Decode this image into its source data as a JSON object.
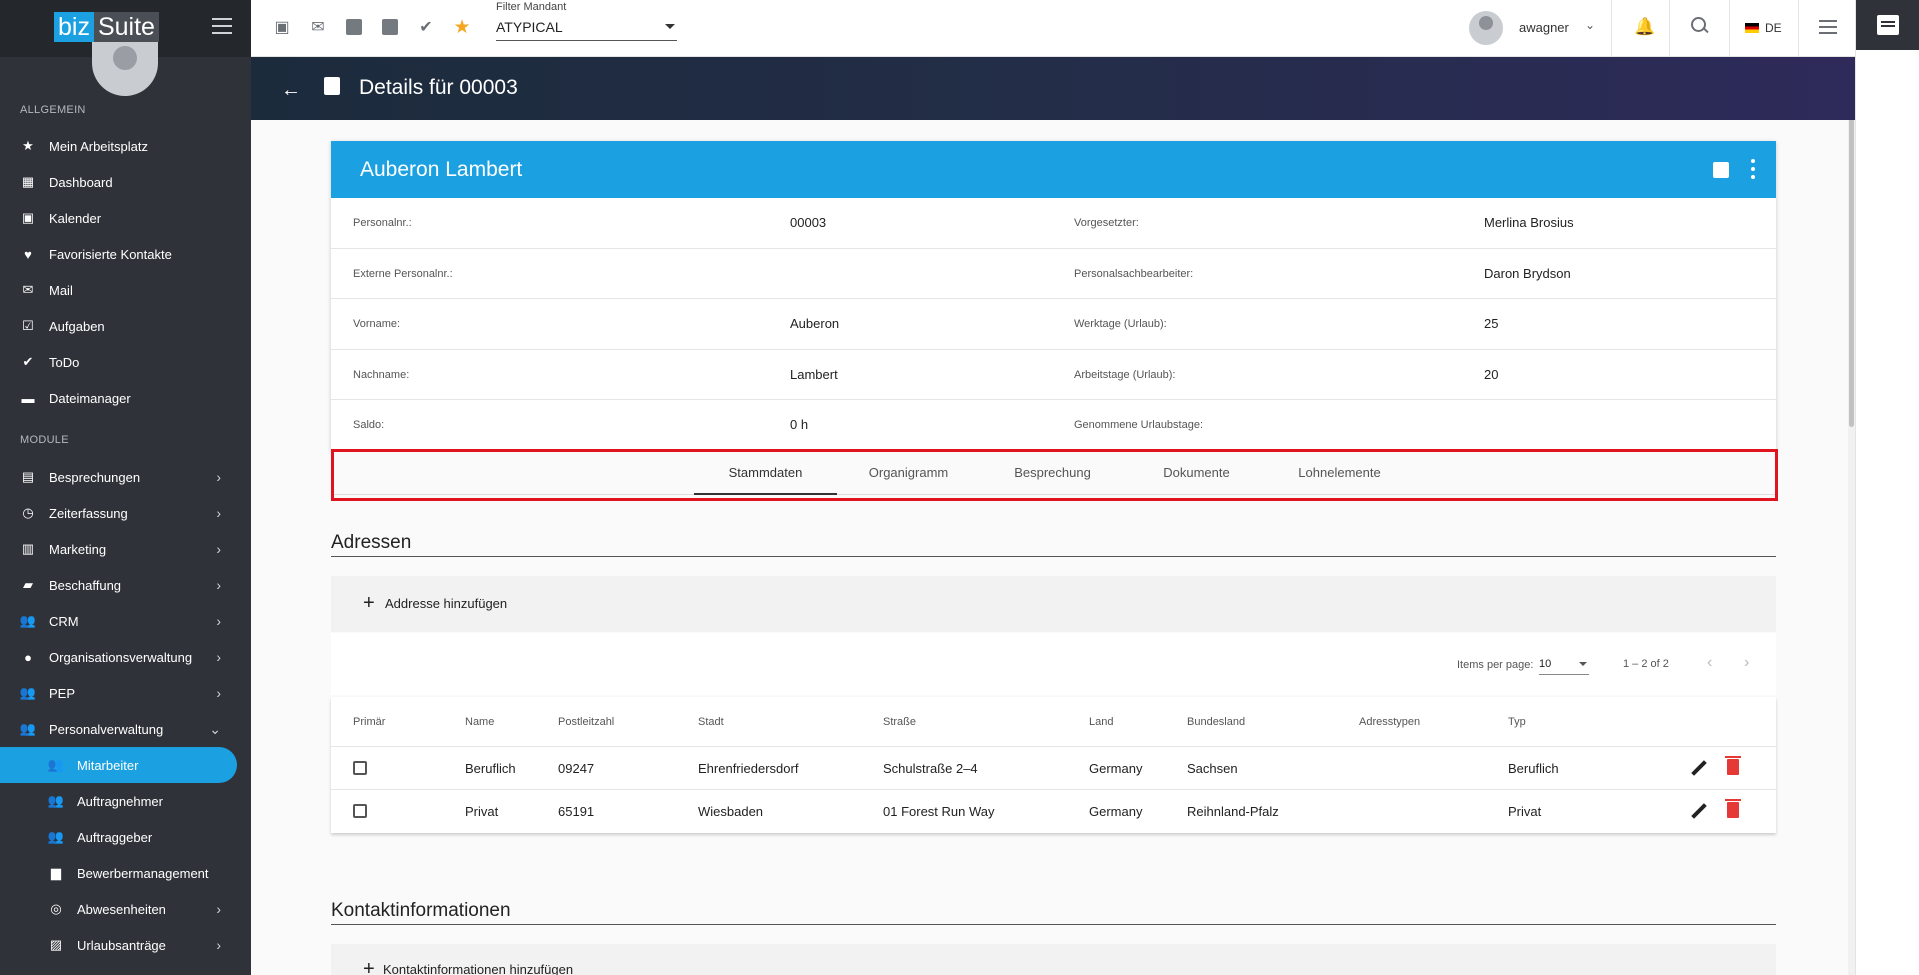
{
  "brand": {
    "part1": "biz",
    "part2": "Suite"
  },
  "sidebar": {
    "section_general": "ALLGEMEIN",
    "general_items": [
      {
        "label": "Mein Arbeitsplatz",
        "icon": "star-icon"
      },
      {
        "label": "Dashboard",
        "icon": "dashboard-icon"
      },
      {
        "label": "Kalender",
        "icon": "calendar-icon"
      },
      {
        "label": "Favorisierte Kontakte",
        "icon": "heart-icon"
      },
      {
        "label": "Mail",
        "icon": "mail-icon"
      },
      {
        "label": "Aufgaben",
        "icon": "checkbox-icon"
      },
      {
        "label": "ToDo",
        "icon": "double-check-icon"
      },
      {
        "label": "Dateimanager",
        "icon": "folder-icon"
      }
    ],
    "section_modules": "MODULE",
    "module_items": [
      {
        "label": "Besprechungen",
        "icon": "clipboard-icon"
      },
      {
        "label": "Zeiterfassung",
        "icon": "clock-icon"
      },
      {
        "label": "Marketing",
        "icon": "chart-icon"
      },
      {
        "label": "Beschaffung",
        "icon": "truck-icon"
      },
      {
        "label": "CRM",
        "icon": "people-icon"
      },
      {
        "label": "Organisationsverwaltung",
        "icon": "org-icon"
      },
      {
        "label": "PEP",
        "icon": "people-icon"
      },
      {
        "label": "Personalverwaltung",
        "icon": "people-icon"
      }
    ],
    "sub_items": [
      {
        "label": "Mitarbeiter",
        "icon": "people-icon",
        "active": true
      },
      {
        "label": "Auftragnehmer",
        "icon": "people-icon"
      },
      {
        "label": "Auftraggeber",
        "icon": "people-icon"
      },
      {
        "label": "Bewerbermanagement",
        "icon": "briefcase-icon"
      },
      {
        "label": "Abwesenheiten",
        "icon": "absence-icon"
      },
      {
        "label": "Urlaubsanträge",
        "icon": "vacation-icon"
      }
    ]
  },
  "topbar": {
    "filter_label": "Filter Mandant",
    "filter_value": "ATYPICAL",
    "username": "awagner",
    "language": "DE"
  },
  "header": {
    "title": "Details für 00003"
  },
  "profile": {
    "name": "Auberon Lambert",
    "rows": [
      {
        "l1": "Personalnr.:",
        "v1": "00003",
        "l2": "Vorgesetzter:",
        "v2": "Merlina Brosius"
      },
      {
        "l1": "Externe Personalnr.:",
        "v1": "",
        "l2": "Personalsachbearbeiter:",
        "v2": "Daron Brydson"
      },
      {
        "l1": "Vorname:",
        "v1": "Auberon",
        "l2": "Werktage (Urlaub):",
        "v2": "25"
      },
      {
        "l1": "Nachname:",
        "v1": "Lambert",
        "l2": "Arbeitstage (Urlaub):",
        "v2": "20"
      },
      {
        "l1": "Saldo:",
        "v1": "0 h",
        "l2": "Genommene Urlaubstage:",
        "v2": ""
      }
    ]
  },
  "tabs": [
    "Stammdaten",
    "Organigramm",
    "Besprechung",
    "Dokumente",
    "Lohnelemente"
  ],
  "addresses": {
    "title": "Adressen",
    "add_label": "Addresse hinzufügen",
    "items_per_page_label": "Items per page:",
    "items_per_page": "10",
    "range": "1 – 2 of 2",
    "columns": [
      "Primär",
      "Name",
      "Postleitzahl",
      "Stadt",
      "Straße",
      "Land",
      "Bundesland",
      "Adresstypen",
      "Typ"
    ],
    "rows": [
      {
        "name": "Beruflich",
        "zip": "09247",
        "city": "Ehrenfriedersdorf",
        "street": "Schulstraße 2–4",
        "country": "Germany",
        "state": "Sachsen",
        "types": "",
        "type": "Beruflich"
      },
      {
        "name": "Privat",
        "zip": "65191",
        "city": "Wiesbaden",
        "street": "01 Forest Run Way",
        "country": "Germany",
        "state": "Reihnland-Pfalz",
        "types": "",
        "type": "Privat"
      }
    ]
  },
  "contacts": {
    "title": "Kontaktinformationen",
    "add_label": "Kontaktinformationen hinzufügen"
  }
}
